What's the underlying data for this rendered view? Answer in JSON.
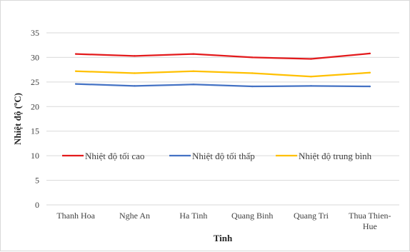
{
  "chart_data": {
    "type": "line",
    "title": "",
    "xlabel": "Tinh",
    "ylabel": "Nhiệt độ (ºC)",
    "ylim": [
      0,
      35
    ],
    "y_ticks": [
      0,
      5,
      10,
      15,
      20,
      25,
      30,
      35
    ],
    "grid": "horizontal",
    "legend_position": "inside-center",
    "categories": [
      [
        "Thanh Hoa"
      ],
      [
        "Nghe An"
      ],
      [
        "Ha Tinh"
      ],
      [
        "Quang Binh"
      ],
      [
        "Quang Tri"
      ],
      [
        "Thua Thien-",
        "Hue"
      ]
    ],
    "series": [
      {
        "name": "Nhiệt độ tối cao",
        "color": "#e31a1c",
        "values": [
          30.7,
          30.3,
          30.7,
          30.0,
          29.7,
          30.8
        ]
      },
      {
        "name": "Nhiệt độ tối thấp",
        "color": "#4472c4",
        "values": [
          24.6,
          24.2,
          24.5,
          24.1,
          24.2,
          24.1
        ]
      },
      {
        "name": "Nhiệt độ trung bình",
        "color": "#ffc000",
        "values": [
          27.2,
          26.8,
          27.2,
          26.8,
          26.1,
          26.9
        ]
      }
    ]
  }
}
